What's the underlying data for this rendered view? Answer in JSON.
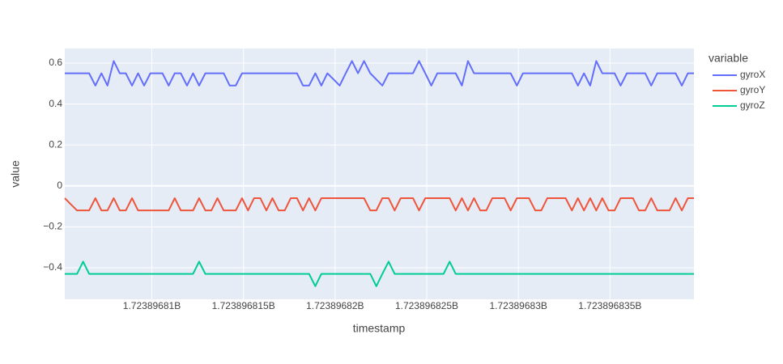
{
  "chart_data": {
    "type": "line",
    "x_label": "timestamp",
    "y_label": "value",
    "legend_title": "variable",
    "legend_position": "right",
    "grid": true,
    "xlim": [
      1723896805.25,
      1723896839.58
    ],
    "ylim": [
      -0.554,
      0.671
    ],
    "xticks": [
      {
        "value": 1723896810,
        "label": "1.72389681B"
      },
      {
        "value": 1723896815,
        "label": "1.723896815B"
      },
      {
        "value": 1723896820,
        "label": "1.72389682B"
      },
      {
        "value": 1723896825,
        "label": "1.723896825B"
      },
      {
        "value": 1723896830,
        "label": "1.72389683B"
      },
      {
        "value": 1723896835,
        "label": "1.723896835B"
      }
    ],
    "yticks": [
      {
        "value": -0.4,
        "label": "−0.4"
      },
      {
        "value": -0.2,
        "label": "−0.2"
      },
      0,
      0.2,
      0.4,
      0.6
    ],
    "x": [
      1723896805.25,
      1723896805.58,
      1723896805.92,
      1723896806.25,
      1723896806.58,
      1723896806.92,
      1723896807.25,
      1723896807.58,
      1723896807.92,
      1723896808.25,
      1723896808.58,
      1723896808.92,
      1723896809.25,
      1723896809.58,
      1723896809.92,
      1723896810.25,
      1723896810.58,
      1723896810.92,
      1723896811.25,
      1723896811.58,
      1723896811.92,
      1723896812.25,
      1723896812.58,
      1723896812.92,
      1723896813.25,
      1723896813.58,
      1723896813.92,
      1723896814.25,
      1723896814.58,
      1723896814.92,
      1723896815.25,
      1723896815.58,
      1723896815.92,
      1723896816.25,
      1723896816.58,
      1723896816.92,
      1723896817.25,
      1723896817.58,
      1723896817.92,
      1723896818.25,
      1723896818.58,
      1723896818.92,
      1723896819.25,
      1723896819.58,
      1723896819.92,
      1723896820.25,
      1723896820.58,
      1723896820.92,
      1723896821.25,
      1723896821.58,
      1723896821.92,
      1723896822.25,
      1723896822.58,
      1723896822.92,
      1723896823.25,
      1723896823.58,
      1723896823.92,
      1723896824.25,
      1723896824.58,
      1723896824.92,
      1723896825.25,
      1723896825.58,
      1723896825.92,
      1723896826.25,
      1723896826.58,
      1723896826.92,
      1723896827.25,
      1723896827.58,
      1723896827.92,
      1723896828.25,
      1723896828.58,
      1723896828.92,
      1723896829.25,
      1723896829.58,
      1723896829.92,
      1723896830.25,
      1723896830.58,
      1723896830.92,
      1723896831.25,
      1723896831.58,
      1723896831.92,
      1723896832.25,
      1723896832.58,
      1723896832.92,
      1723896833.25,
      1723896833.58,
      1723896833.92,
      1723896834.25,
      1723896834.58,
      1723896834.92,
      1723896835.25,
      1723896835.58,
      1723896835.92,
      1723896836.25,
      1723896836.58,
      1723896836.92,
      1723896837.25,
      1723896837.58,
      1723896837.92,
      1723896838.25,
      1723896838.58,
      1723896838.92,
      1723896839.25,
      1723896839.58
    ],
    "series": [
      {
        "name": "gyroX",
        "color": "#636efa",
        "values": [
          0.55,
          0.55,
          0.55,
          0.55,
          0.55,
          0.49,
          0.55,
          0.49,
          0.61,
          0.55,
          0.55,
          0.49,
          0.55,
          0.49,
          0.55,
          0.55,
          0.55,
          0.49,
          0.55,
          0.55,
          0.49,
          0.55,
          0.49,
          0.55,
          0.55,
          0.55,
          0.55,
          0.49,
          0.49,
          0.55,
          0.55,
          0.55,
          0.55,
          0.55,
          0.55,
          0.55,
          0.55,
          0.55,
          0.55,
          0.49,
          0.49,
          0.55,
          0.49,
          0.55,
          0.52,
          0.49,
          0.55,
          0.61,
          0.55,
          0.61,
          0.55,
          0.52,
          0.49,
          0.55,
          0.55,
          0.55,
          0.55,
          0.55,
          0.61,
          0.55,
          0.49,
          0.55,
          0.55,
          0.55,
          0.55,
          0.49,
          0.61,
          0.55,
          0.55,
          0.55,
          0.55,
          0.55,
          0.55,
          0.55,
          0.49,
          0.55,
          0.55,
          0.55,
          0.55,
          0.55,
          0.55,
          0.55,
          0.55,
          0.55,
          0.49,
          0.55,
          0.49,
          0.61,
          0.55,
          0.55,
          0.55,
          0.49,
          0.55,
          0.55,
          0.55,
          0.55,
          0.49,
          0.55,
          0.55,
          0.55,
          0.55,
          0.49,
          0.55,
          0.55
        ]
      },
      {
        "name": "gyroY",
        "color": "#ef553b",
        "values": [
          -0.06,
          -0.09,
          -0.12,
          -0.12,
          -0.12,
          -0.06,
          -0.12,
          -0.12,
          -0.06,
          -0.12,
          -0.12,
          -0.06,
          -0.12,
          -0.12,
          -0.12,
          -0.12,
          -0.12,
          -0.12,
          -0.06,
          -0.12,
          -0.12,
          -0.12,
          -0.06,
          -0.12,
          -0.12,
          -0.06,
          -0.12,
          -0.12,
          -0.12,
          -0.06,
          -0.12,
          -0.06,
          -0.06,
          -0.12,
          -0.06,
          -0.12,
          -0.12,
          -0.06,
          -0.06,
          -0.12,
          -0.06,
          -0.12,
          -0.06,
          -0.06,
          -0.06,
          -0.06,
          -0.06,
          -0.06,
          -0.06,
          -0.06,
          -0.12,
          -0.12,
          -0.06,
          -0.06,
          -0.12,
          -0.06,
          -0.06,
          -0.06,
          -0.12,
          -0.06,
          -0.06,
          -0.06,
          -0.06,
          -0.06,
          -0.12,
          -0.06,
          -0.12,
          -0.06,
          -0.12,
          -0.12,
          -0.06,
          -0.06,
          -0.06,
          -0.12,
          -0.06,
          -0.06,
          -0.06,
          -0.12,
          -0.12,
          -0.06,
          -0.06,
          -0.06,
          -0.06,
          -0.12,
          -0.06,
          -0.12,
          -0.06,
          -0.12,
          -0.06,
          -0.12,
          -0.12,
          -0.06,
          -0.06,
          -0.06,
          -0.12,
          -0.12,
          -0.06,
          -0.12,
          -0.12,
          -0.12,
          -0.06,
          -0.12,
          -0.06,
          -0.06
        ]
      },
      {
        "name": "gyroZ",
        "color": "#00cc96",
        "values": [
          -0.43,
          -0.43,
          -0.43,
          -0.37,
          -0.43,
          -0.43,
          -0.43,
          -0.43,
          -0.43,
          -0.43,
          -0.43,
          -0.43,
          -0.43,
          -0.43,
          -0.43,
          -0.43,
          -0.43,
          -0.43,
          -0.43,
          -0.43,
          -0.43,
          -0.43,
          -0.37,
          -0.43,
          -0.43,
          -0.43,
          -0.43,
          -0.43,
          -0.43,
          -0.43,
          -0.43,
          -0.43,
          -0.43,
          -0.43,
          -0.43,
          -0.43,
          -0.43,
          -0.43,
          -0.43,
          -0.43,
          -0.43,
          -0.49,
          -0.43,
          -0.43,
          -0.43,
          -0.43,
          -0.43,
          -0.43,
          -0.43,
          -0.43,
          -0.43,
          -0.49,
          -0.43,
          -0.37,
          -0.43,
          -0.43,
          -0.43,
          -0.43,
          -0.43,
          -0.43,
          -0.43,
          -0.43,
          -0.43,
          -0.37,
          -0.43,
          -0.43,
          -0.43,
          -0.43,
          -0.43,
          -0.43,
          -0.43,
          -0.43,
          -0.43,
          -0.43,
          -0.43,
          -0.43,
          -0.43,
          -0.43,
          -0.43,
          -0.43,
          -0.43,
          -0.43,
          -0.43,
          -0.43,
          -0.43,
          -0.43,
          -0.43,
          -0.43,
          -0.43,
          -0.43,
          -0.43,
          -0.43,
          -0.43,
          -0.43,
          -0.43,
          -0.43,
          -0.43,
          -0.43,
          -0.43,
          -0.43,
          -0.43,
          -0.43,
          -0.43,
          -0.43
        ]
      }
    ]
  }
}
